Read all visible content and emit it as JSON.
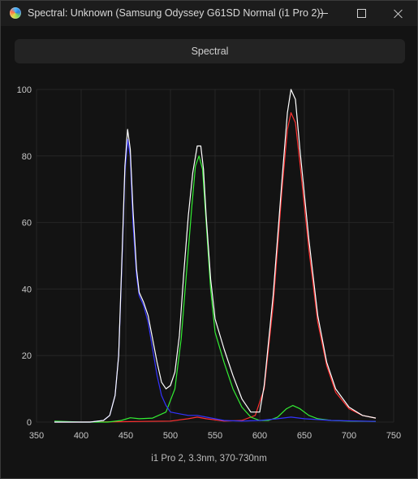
{
  "window": {
    "title": "Spectral: Unknown (Samsung Odyssey G61SD Normal (i1 Pro 2))",
    "icon": "displaycal-icon",
    "controls": [
      "minimize",
      "maximize",
      "close"
    ]
  },
  "header": {
    "label": "Spectral"
  },
  "footer": {
    "label": "i1 Pro 2, 3.3nm, 370-730nm"
  },
  "colors": {
    "background": "#131313",
    "grid": "#262626",
    "total": "#ffffff",
    "red": "#ff3030",
    "green": "#33ee33",
    "blue": "#3333ff"
  },
  "chart_data": {
    "type": "line",
    "xlabel": "",
    "ylabel": "",
    "xlim": [
      350,
      750
    ],
    "ylim": [
      0,
      100
    ],
    "x_ticks": [
      350,
      400,
      450,
      500,
      550,
      600,
      650,
      700,
      750
    ],
    "y_ticks": [
      0,
      20,
      40,
      60,
      80,
      100
    ],
    "grid": true,
    "series": [
      {
        "color": "#ff3030",
        "points": [
          [
            370,
            0
          ],
          [
            400,
            0
          ],
          [
            440,
            0.1
          ],
          [
            470,
            0.2
          ],
          [
            500,
            0.3
          ],
          [
            520,
            1
          ],
          [
            530,
            1.5
          ],
          [
            540,
            1
          ],
          [
            560,
            0.3
          ],
          [
            580,
            0.5
          ],
          [
            595,
            2
          ],
          [
            605,
            10
          ],
          [
            615,
            35
          ],
          [
            625,
            70
          ],
          [
            631,
            88
          ],
          [
            635,
            93
          ],
          [
            640,
            90
          ],
          [
            645,
            78
          ],
          [
            655,
            52
          ],
          [
            665,
            30
          ],
          [
            675,
            17
          ],
          [
            685,
            9
          ],
          [
            700,
            4
          ],
          [
            715,
            2
          ],
          [
            730,
            1.2
          ]
        ]
      },
      {
        "color": "#33ee33",
        "points": [
          [
            370,
            0.3
          ],
          [
            400,
            0
          ],
          [
            430,
            0
          ],
          [
            445,
            0.5
          ],
          [
            455,
            1.3
          ],
          [
            465,
            1
          ],
          [
            480,
            1.2
          ],
          [
            495,
            3
          ],
          [
            505,
            10
          ],
          [
            512,
            25
          ],
          [
            518,
            45
          ],
          [
            524,
            65
          ],
          [
            528,
            77
          ],
          [
            532,
            80
          ],
          [
            536,
            76
          ],
          [
            540,
            60
          ],
          [
            545,
            40
          ],
          [
            550,
            27
          ],
          [
            560,
            18
          ],
          [
            570,
            10
          ],
          [
            580,
            4.5
          ],
          [
            590,
            1.5
          ],
          [
            600,
            0.5
          ],
          [
            610,
            0.5
          ],
          [
            620,
            1.5
          ],
          [
            630,
            4
          ],
          [
            637,
            5
          ],
          [
            645,
            4
          ],
          [
            655,
            2
          ],
          [
            665,
            1
          ],
          [
            680,
            0.5
          ],
          [
            700,
            0.3
          ],
          [
            730,
            0.2
          ]
        ]
      },
      {
        "color": "#3333ff",
        "points": [
          [
            370,
            0
          ],
          [
            410,
            0
          ],
          [
            425,
            0.5
          ],
          [
            432,
            2
          ],
          [
            438,
            8
          ],
          [
            442,
            20
          ],
          [
            446,
            50
          ],
          [
            449,
            75
          ],
          [
            452,
            85
          ],
          [
            455,
            80
          ],
          [
            458,
            60
          ],
          [
            462,
            44
          ],
          [
            465,
            38
          ],
          [
            470,
            35
          ],
          [
            475,
            30
          ],
          [
            480,
            22
          ],
          [
            485,
            14
          ],
          [
            490,
            8
          ],
          [
            495,
            5
          ],
          [
            500,
            3
          ],
          [
            510,
            2.5
          ],
          [
            520,
            2
          ],
          [
            530,
            2
          ],
          [
            540,
            1.5
          ],
          [
            560,
            0.5
          ],
          [
            580,
            0.3
          ],
          [
            600,
            0.5
          ],
          [
            620,
            1
          ],
          [
            635,
            1.5
          ],
          [
            650,
            1
          ],
          [
            680,
            0.5
          ],
          [
            730,
            0.2
          ]
        ]
      },
      {
        "color": "#ffffff",
        "points": [
          [
            370,
            0
          ],
          [
            410,
            0
          ],
          [
            425,
            0.5
          ],
          [
            432,
            2
          ],
          [
            438,
            8
          ],
          [
            442,
            20
          ],
          [
            446,
            52
          ],
          [
            449,
            77
          ],
          [
            452,
            88
          ],
          [
            455,
            82
          ],
          [
            458,
            64
          ],
          [
            462,
            46
          ],
          [
            465,
            39
          ],
          [
            470,
            36
          ],
          [
            475,
            32
          ],
          [
            480,
            25
          ],
          [
            485,
            18
          ],
          [
            490,
            12
          ],
          [
            495,
            10
          ],
          [
            500,
            11
          ],
          [
            505,
            15
          ],
          [
            510,
            26
          ],
          [
            515,
            45
          ],
          [
            520,
            62
          ],
          [
            525,
            75
          ],
          [
            530,
            83
          ],
          [
            534,
            83
          ],
          [
            537,
            76
          ],
          [
            540,
            62
          ],
          [
            545,
            43
          ],
          [
            550,
            31
          ],
          [
            560,
            22
          ],
          [
            570,
            14
          ],
          [
            580,
            7
          ],
          [
            590,
            3
          ],
          [
            600,
            3
          ],
          [
            605,
            11
          ],
          [
            615,
            38
          ],
          [
            625,
            73
          ],
          [
            631,
            93
          ],
          [
            635,
            100
          ],
          [
            640,
            97
          ],
          [
            645,
            82
          ],
          [
            655,
            55
          ],
          [
            665,
            32
          ],
          [
            675,
            18
          ],
          [
            685,
            10
          ],
          [
            700,
            4.5
          ],
          [
            715,
            2
          ],
          [
            730,
            1.2
          ]
        ]
      }
    ]
  }
}
